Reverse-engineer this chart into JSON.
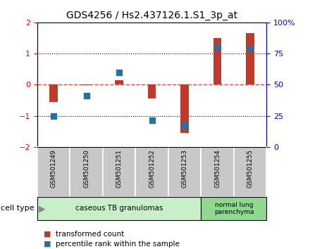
{
  "title": "GDS4256 / Hs2.437126.1.S1_3p_at",
  "samples": [
    "GSM501249",
    "GSM501250",
    "GSM501251",
    "GSM501252",
    "GSM501253",
    "GSM501254",
    "GSM501255"
  ],
  "transformed_counts": [
    -0.55,
    -0.02,
    0.15,
    -0.45,
    -1.55,
    1.5,
    1.65
  ],
  "percentile_ranks": [
    -1.0,
    -0.35,
    0.4,
    -1.15,
    -1.3,
    1.2,
    1.15
  ],
  "ylim_left": [
    -2,
    2
  ],
  "yticks_left": [
    -2,
    -1,
    0,
    1,
    2
  ],
  "yticks_right": [
    0,
    25,
    50,
    75,
    100
  ],
  "ytick_right_labels": [
    "0",
    "25",
    "50",
    "75",
    "100%"
  ],
  "bar_color": "#c0392b",
  "dot_color": "#2471a3",
  "hline_color": "#e74c3c",
  "group1_samples": [
    0,
    1,
    2,
    3,
    4
  ],
  "group2_samples": [
    5,
    6
  ],
  "group1_label": "caseous TB granulomas",
  "group2_label": "normal lung\nparenchyma",
  "group1_color": "#c8f0c8",
  "group2_color": "#90d890",
  "cell_type_label": "cell type",
  "legend_bar_label": "transformed count",
  "legend_dot_label": "percentile rank within the sample",
  "title_fontsize": 10,
  "tick_fontsize": 8,
  "bar_width": 0.25,
  "dot_size": 30,
  "label_area_color": "#c8c8c8"
}
